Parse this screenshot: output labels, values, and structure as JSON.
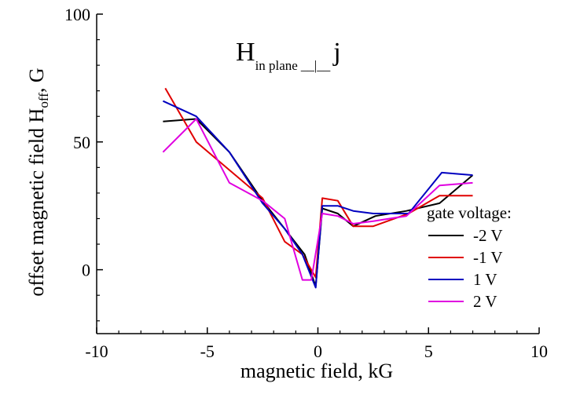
{
  "chart_data": {
    "type": "line",
    "xlabel": "magnetic field, kG",
    "ylabel_parts": {
      "prefix": "offset magnetic field H",
      "subscript": "off",
      "suffix": ", G"
    },
    "annotation": {
      "main": "H",
      "subscript": "in plane",
      "relation": "__|__",
      "tail": "j"
    },
    "xlim": [
      -10,
      10
    ],
    "ylim": [
      -25,
      100
    ],
    "x_ticks": [
      -10,
      -5,
      0,
      5,
      10
    ],
    "y_ticks": [
      0,
      50,
      100
    ],
    "x_tick_labels": [
      "-10",
      "-5",
      "0",
      "5",
      "10"
    ],
    "y_tick_labels": [
      "0",
      "50",
      "100"
    ],
    "grid": false,
    "legend_title": "gate voltage:",
    "legend_position": "right",
    "series": [
      {
        "name": "-2 V",
        "color": "#000000",
        "points": [
          [
            -7,
            58
          ],
          [
            -5.5,
            59
          ],
          [
            -4,
            46
          ],
          [
            -2.5,
            27
          ],
          [
            -1.5,
            16
          ],
          [
            -0.6,
            6
          ],
          [
            -0.1,
            -6.5
          ],
          [
            0.2,
            24
          ],
          [
            0.9,
            22
          ],
          [
            1.6,
            17
          ],
          [
            2.6,
            21
          ],
          [
            4,
            23
          ],
          [
            5.5,
            26
          ],
          [
            7,
            37
          ]
        ]
      },
      {
        "name": "-1 V",
        "color": "#e00000",
        "points": [
          [
            -6.9,
            71
          ],
          [
            -5.5,
            50
          ],
          [
            -4,
            39
          ],
          [
            -2.5,
            28
          ],
          [
            -1.5,
            11
          ],
          [
            -0.7,
            6
          ],
          [
            -0.1,
            -3
          ],
          [
            0.2,
            28
          ],
          [
            0.9,
            27
          ],
          [
            1.6,
            17
          ],
          [
            2.5,
            17
          ],
          [
            4.1,
            22
          ],
          [
            5.5,
            29
          ],
          [
            7,
            29
          ]
        ]
      },
      {
        "name": "1 V",
        "color": "#0000c0",
        "points": [
          [
            -7,
            66
          ],
          [
            -5.5,
            60
          ],
          [
            -4,
            46
          ],
          [
            -2.5,
            26
          ],
          [
            -1.5,
            16
          ],
          [
            -0.7,
            6
          ],
          [
            -0.1,
            -7
          ],
          [
            0.2,
            25
          ],
          [
            0.9,
            25
          ],
          [
            1.6,
            23
          ],
          [
            2.5,
            22
          ],
          [
            4.1,
            22
          ],
          [
            5.6,
            38
          ],
          [
            7,
            37
          ]
        ]
      },
      {
        "name": "2 V",
        "color": "#e000e0",
        "points": [
          [
            -7,
            46
          ],
          [
            -5.5,
            59
          ],
          [
            -4,
            34
          ],
          [
            -2.5,
            27
          ],
          [
            -1.5,
            20
          ],
          [
            -0.7,
            -4
          ],
          [
            -0.3,
            -4
          ],
          [
            0.2,
            22
          ],
          [
            0.9,
            21
          ],
          [
            1.6,
            18
          ],
          [
            2.5,
            19
          ],
          [
            4,
            21
          ],
          [
            5.5,
            33
          ],
          [
            7,
            34
          ]
        ]
      }
    ]
  }
}
